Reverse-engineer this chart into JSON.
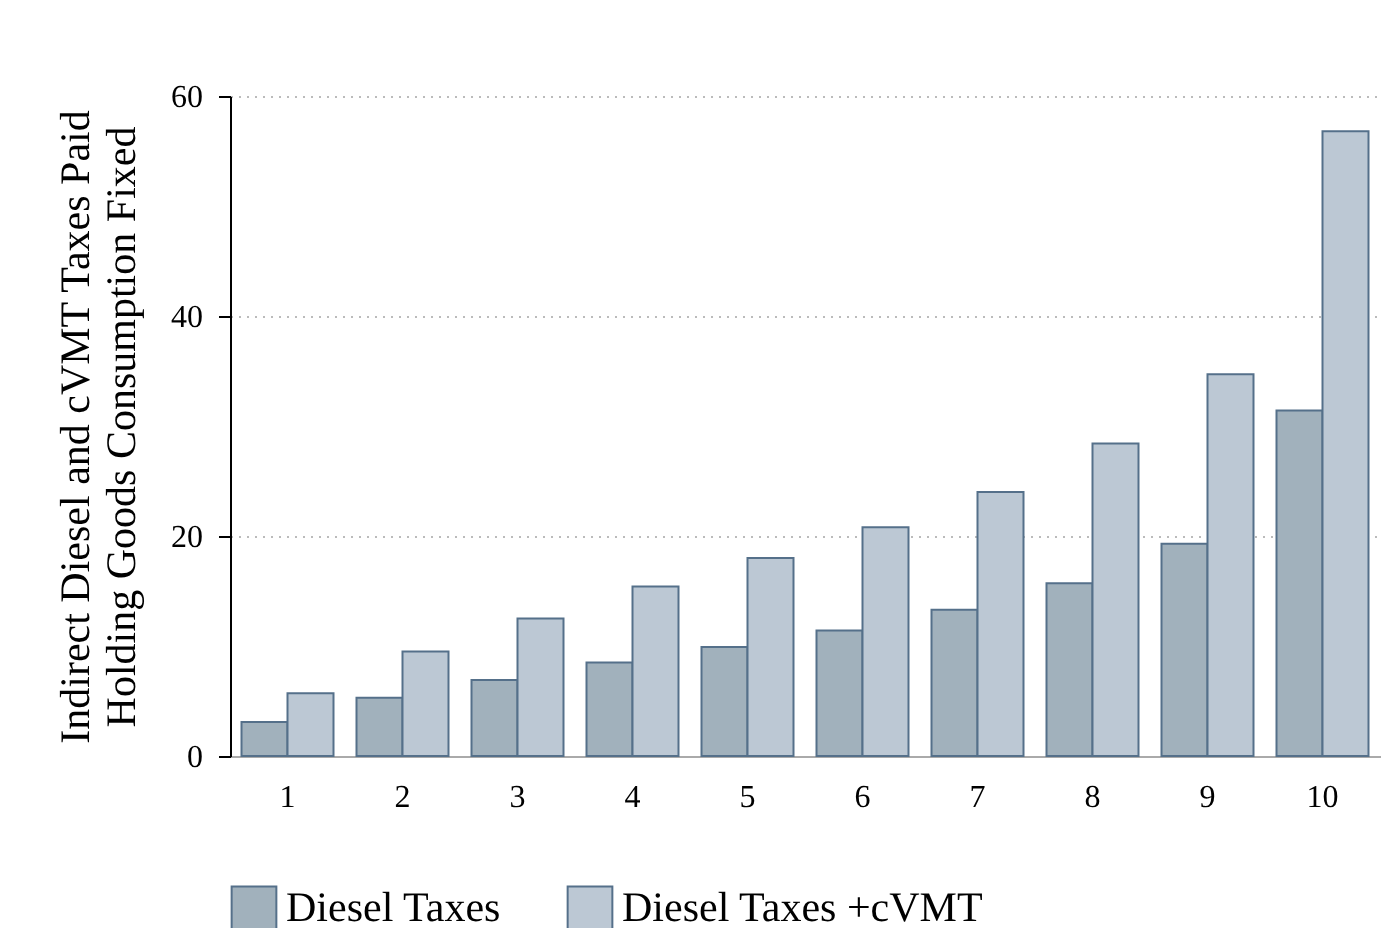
{
  "chart_data": {
    "type": "bar",
    "ylabel": "Indirect Diesel and cVMT Taxes Paid Holding Goods Consumption Fixed",
    "categories": [
      "1",
      "2",
      "3",
      "4",
      "5",
      "6",
      "7",
      "8",
      "9",
      "10"
    ],
    "series": [
      {
        "name": "Diesel Taxes",
        "color": "#a1b1bc",
        "values": [
          3.1,
          5.3,
          6.9,
          8.5,
          9.9,
          11.4,
          13.3,
          15.7,
          19.3,
          31.4
        ]
      },
      {
        "name": "Diesel Taxes +cVMT",
        "color": "#bcc8d4",
        "values": [
          5.7,
          9.5,
          12.5,
          15.4,
          18.0,
          20.8,
          24.0,
          28.4,
          34.7,
          56.8
        ]
      }
    ],
    "ylim": [
      0,
      60
    ],
    "yticks": [
      0,
      20,
      40,
      60
    ],
    "grid": "y",
    "legend": "bottom"
  }
}
